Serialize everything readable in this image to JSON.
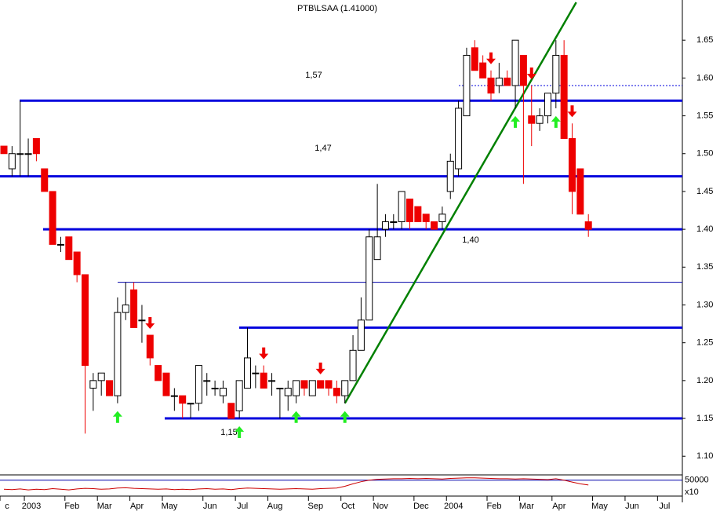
{
  "chart_data": {
    "type": "candlestick",
    "title": "PTB\\LSAA (1.41000)",
    "categories": [
      "c",
      null,
      null,
      "2003",
      null,
      null,
      null,
      null,
      "Feb",
      null,
      null,
      null,
      "Mar",
      null,
      null,
      null,
      "Apr",
      null,
      null,
      null,
      "May",
      null,
      null,
      null,
      null,
      "Jun",
      null,
      null,
      null,
      "Jul",
      null,
      null,
      null,
      "Aug",
      null,
      null,
      null,
      null,
      "Sep",
      null,
      null,
      null,
      "Oct",
      null,
      null,
      null,
      "Nov",
      null,
      null,
      null,
      null,
      "Dec",
      null,
      null,
      null,
      "2004",
      null,
      null,
      null,
      null,
      "Feb",
      null,
      null,
      null,
      "Mar",
      null,
      null,
      null,
      "Apr",
      null,
      null,
      null,
      null,
      "May",
      null,
      null,
      null,
      "Jun",
      null,
      null,
      null,
      "Jul"
    ],
    "open": [
      1.51,
      1.48,
      1.5,
      1.5,
      1.52,
      1.48,
      1.45,
      1.38,
      1.39,
      1.37,
      1.34,
      1.19,
      1.2,
      1.2,
      1.18,
      1.29,
      1.32,
      1.28,
      1.26,
      1.22,
      1.21,
      1.18,
      1.18,
      1.17,
      1.17,
      1.2,
      1.19,
      1.18,
      1.17,
      1.16,
      1.19,
      1.21,
      1.21,
      1.2,
      1.19,
      1.18,
      1.18,
      1.2,
      1.18,
      1.2,
      1.2,
      1.19,
      1.18,
      1.2,
      1.24,
      1.28,
      1.36,
      1.4,
      1.41,
      1.41,
      1.44,
      1.43,
      1.42,
      1.41,
      1.41,
      1.45,
      1.48,
      1.55,
      1.64,
      1.62,
      1.6,
      1.59,
      1.6,
      1.59,
      1.63,
      1.55,
      1.54,
      1.55,
      1.58,
      1.63,
      1.52,
      1.48,
      1.41,
      null,
      null,
      null,
      null,
      null,
      null,
      null,
      null,
      null
    ],
    "high": [
      1.51,
      1.51,
      1.57,
      1.52,
      1.52,
      1.48,
      1.45,
      1.39,
      1.39,
      1.37,
      1.34,
      1.21,
      1.21,
      1.2,
      1.31,
      1.33,
      1.33,
      1.3,
      1.26,
      1.22,
      1.21,
      1.19,
      1.18,
      1.17,
      1.22,
      1.21,
      1.2,
      1.2,
      1.17,
      1.2,
      1.27,
      1.22,
      1.22,
      1.21,
      1.19,
      1.2,
      1.2,
      1.2,
      1.2,
      1.2,
      1.2,
      1.2,
      1.2,
      1.26,
      1.31,
      1.4,
      1.46,
      1.42,
      1.42,
      1.45,
      1.44,
      1.43,
      1.42,
      1.41,
      1.43,
      1.5,
      1.57,
      1.64,
      1.65,
      1.63,
      1.61,
      1.62,
      1.61,
      1.65,
      1.63,
      1.59,
      1.56,
      1.58,
      1.65,
      1.65,
      1.54,
      1.48,
      1.42,
      null,
      null,
      null,
      null,
      null,
      null,
      null,
      null,
      null
    ],
    "low": [
      1.5,
      1.47,
      1.47,
      1.47,
      1.49,
      1.45,
      1.38,
      1.37,
      1.36,
      1.33,
      1.13,
      1.16,
      1.18,
      1.18,
      1.17,
      1.28,
      1.27,
      1.25,
      1.22,
      1.2,
      1.18,
      1.16,
      1.15,
      1.15,
      1.16,
      1.18,
      1.18,
      1.17,
      1.15,
      1.15,
      1.19,
      1.19,
      1.19,
      1.18,
      1.15,
      1.16,
      1.17,
      1.18,
      1.18,
      1.19,
      1.18,
      1.17,
      1.17,
      1.2,
      1.24,
      1.28,
      1.36,
      1.39,
      1.4,
      1.4,
      1.4,
      1.41,
      1.4,
      1.4,
      1.4,
      1.44,
      1.47,
      1.55,
      1.61,
      1.6,
      1.57,
      1.58,
      1.59,
      1.56,
      1.46,
      1.51,
      1.53,
      1.54,
      1.56,
      1.52,
      1.42,
      1.42,
      1.39,
      null,
      null,
      null,
      null,
      null,
      null,
      null,
      null,
      null
    ],
    "close": [
      1.5,
      1.5,
      1.5,
      1.5,
      1.5,
      1.45,
      1.38,
      1.38,
      1.36,
      1.34,
      1.22,
      1.2,
      1.21,
      1.18,
      1.29,
      1.3,
      1.27,
      1.28,
      1.23,
      1.2,
      1.18,
      1.18,
      1.17,
      1.17,
      1.22,
      1.2,
      1.19,
      1.19,
      1.15,
      1.2,
      1.23,
      1.21,
      1.19,
      1.2,
      1.19,
      1.19,
      1.2,
      1.19,
      1.2,
      1.19,
      1.19,
      1.18,
      1.2,
      1.24,
      1.28,
      1.39,
      1.39,
      1.41,
      1.41,
      1.45,
      1.41,
      1.41,
      1.41,
      1.4,
      1.42,
      1.49,
      1.56,
      1.63,
      1.61,
      1.6,
      1.58,
      1.6,
      1.59,
      1.65,
      1.59,
      1.54,
      1.55,
      1.58,
      1.63,
      1.52,
      1.45,
      1.42,
      1.4,
      null,
      null,
      null,
      null,
      null,
      null,
      null,
      null,
      null
    ],
    "up_color": "#ffffff",
    "down_color": "#ee0000",
    "ylim": [
      1.08,
      1.7
    ],
    "yticks": [
      {
        "value": 1.1,
        "label": "1.10"
      },
      1.15,
      {
        "value": 1.2,
        "label": "1.20"
      },
      1.25,
      {
        "value": 1.3,
        "label": "1.30"
      },
      1.35,
      {
        "value": 1.4,
        "label": "1.40"
      },
      1.45,
      {
        "value": 1.5,
        "label": "1.50"
      },
      1.55,
      {
        "value": 1.6,
        "label": "1.60"
      },
      1.65
    ],
    "hlines": [
      {
        "value": 1.57,
        "label": "1,57"
      },
      {
        "value": 1.47,
        "label": "1,47"
      },
      {
        "value": 1.4,
        "label": "1,40"
      },
      {
        "value": 1.33
      },
      {
        "value": 1.27
      },
      {
        "value": 1.15,
        "label": "1,15"
      },
      {
        "value": 1.59
      }
    ],
    "trendline": {
      "x": [
        42,
        70.5
      ],
      "y": [
        1.17,
        1.7
      ],
      "color": "#008000"
    },
    "buy_signals": [
      14,
      29,
      36,
      42,
      63,
      68
    ],
    "sell_signals": [
      18,
      32,
      39,
      60,
      65,
      70
    ],
    "volume": {
      "ylim": [
        0,
        65000
      ],
      "yticks": [
        50000
      ],
      "unit": "x10",
      "color": "#cc0000",
      "values": [
        20000,
        19000,
        21000,
        18000,
        20000,
        19000,
        22000,
        20000,
        18000,
        21000,
        23000,
        22000,
        20000,
        21000,
        24000,
        25000,
        23000,
        22000,
        21000,
        20000,
        21000,
        19000,
        20000,
        19000,
        21000,
        22000,
        20000,
        21000,
        19000,
        22000,
        24000,
        23000,
        22000,
        21000,
        20000,
        21000,
        22000,
        21000,
        20000,
        22000,
        23000,
        24000,
        30000,
        38000,
        45000,
        50000,
        53000,
        54000,
        55000,
        55000,
        56000,
        55000,
        56000,
        55000,
        54000,
        56000,
        57000,
        58000,
        58000,
        57000,
        56000,
        55000,
        55000,
        54000,
        55000,
        54000,
        53000,
        52000,
        55000,
        50000,
        44000,
        38000,
        34000,
        null,
        null,
        null,
        null,
        null,
        null,
        null,
        null,
        null
      ]
    }
  }
}
